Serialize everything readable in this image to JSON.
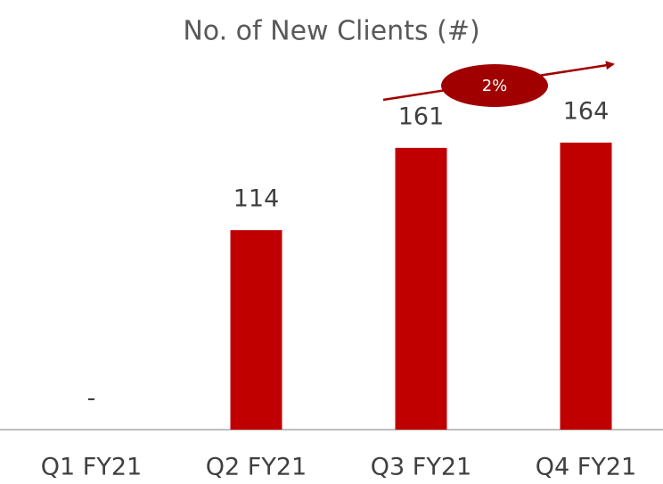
{
  "chart_data": {
    "type": "bar",
    "title": "No. of New Clients (#)",
    "categories": [
      "Q1 FY21",
      "Q2 FY21",
      "Q3 FY21",
      "Q4 FY21"
    ],
    "values": [
      0,
      114,
      161,
      164
    ],
    "value_labels": [
      "-",
      "114",
      "161",
      "164"
    ],
    "color": "#c00000",
    "annotation": "2%"
  }
}
